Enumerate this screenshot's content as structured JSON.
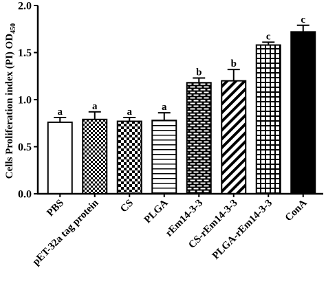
{
  "chart_data": {
    "type": "bar",
    "ylabel_main": "Cells Proliferation index (PI) OD",
    "ylabel_sub": "450",
    "ylim": [
      0,
      2.0
    ],
    "yticks": [
      "0.0",
      "0.5",
      "1.0",
      "1.5",
      "2.0"
    ],
    "ytick_values": [
      0,
      0.5,
      1.0,
      1.5,
      2.0
    ],
    "categories": [
      "PBS",
      "pET-32a tag protein",
      "CS",
      "PLGA",
      "rEm14-3-3",
      "CS-rEm14-3-3",
      "PLGA-rEm14-3-3",
      "ConA"
    ],
    "values": [
      0.76,
      0.79,
      0.77,
      0.78,
      1.18,
      1.2,
      1.58,
      1.72
    ],
    "errors": [
      0.05,
      0.08,
      0.04,
      0.08,
      0.05,
      0.12,
      0.03,
      0.07
    ],
    "significance": [
      "a",
      "a",
      "a",
      "a",
      "b",
      "b",
      "c",
      "c"
    ],
    "patterns": [
      "none",
      "checker-small",
      "checker-large",
      "horizontal",
      "brick",
      "diagonal",
      "grid",
      "solid"
    ]
  }
}
